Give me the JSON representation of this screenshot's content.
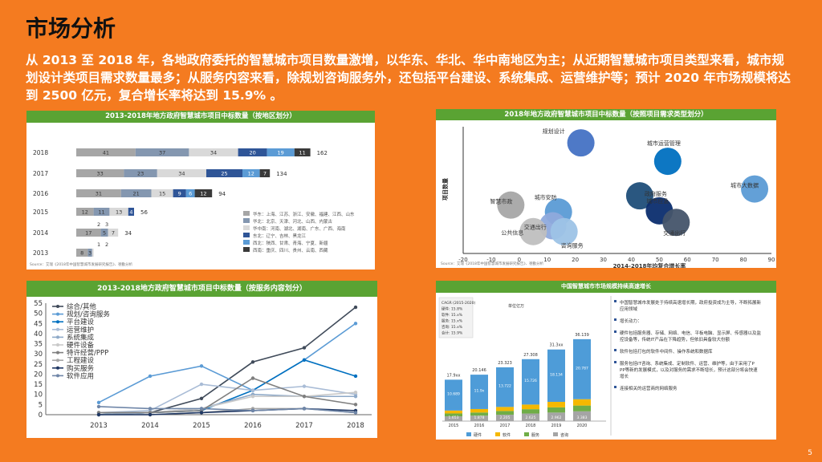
{
  "slide": {
    "title": "市场分析",
    "summary": "从 2013 至 2018 年，各地政府委托的智慧城市项目数量激增，以华东、华北、华中南地区为主；从近期智慧城市项目类型来看，城市规划设计类项目需求数量最多；从服务内容来看，除规划咨询服务外，还包括平台建设、系统集成、运营维护等；预计 2020 年市场规模将达到 2500 亿元，复合增长率将达到 15.9% 。",
    "page_number": "5"
  },
  "chart_data": [
    {
      "type": "bar",
      "title": "2013-2018年地方政府智慧城市项目中标数量（按地区划分）",
      "categories": [
        "2018",
        "2017",
        "2016",
        "2015",
        "2014",
        "2013"
      ],
      "series": [
        {
          "name": "华东：上海、江苏、浙江、安徽、福建、江西、山东",
          "color": "#a6a6a6",
          "values": [
            41,
            33,
            31,
            12,
            17,
            8
          ]
        },
        {
          "name": "华北：北京、天津、河北、山西、内蒙古",
          "color": "#8497b0",
          "values": [
            37,
            23,
            21,
            11,
            5,
            3
          ]
        },
        {
          "name": "华中南：河南、湖北、湖南、广东、广西、海南",
          "color": "#d9d9d9",
          "values": [
            34,
            34,
            15,
            13,
            7,
            1
          ]
        },
        {
          "name": "东北：辽宁、吉林、黑龙江",
          "color": "#2f5597",
          "values": [
            20,
            25,
            9,
            4,
            0,
            0
          ]
        },
        {
          "name": "西北：陕西、甘肃、青海、宁夏、新疆",
          "color": "#5b9bd5",
          "values": [
            19,
            12,
            6,
            0,
            0,
            0
          ]
        },
        {
          "name": "西南：重庆、四川、贵州、云南、西藏",
          "color": "#3a3a3a",
          "values": [
            11,
            7,
            12,
            0,
            0,
            0
          ]
        }
      ],
      "labels": [
        [
          "41",
          "37",
          "34",
          "20",
          "19",
          "11"
        ],
        [
          "33",
          "23",
          "34",
          "25",
          "12",
          "7"
        ],
        [
          "31",
          "21",
          "15",
          "9",
          "6",
          "12"
        ],
        [
          "12",
          "11",
          "13",
          "4",
          "",
          ""
        ],
        [
          "17",
          "5",
          "7",
          "",
          "",
          ""
        ],
        [
          "8",
          "3",
          "",
          "",
          "",
          ""
        ]
      ],
      "above_labels": [
        [
          "",
          ""
        ],
        [
          "",
          ""
        ],
        [
          "",
          ""
        ],
        [
          "",
          ""
        ],
        [
          "2",
          "3"
        ],
        [
          "1",
          "2"
        ]
      ],
      "totals": [
        "162",
        "134",
        "94",
        "56",
        "34",
        ""
      ],
      "xlim": [
        0,
        180
      ],
      "legend_position": "bottom-right",
      "source": "Source：艾瑞《2018年中国智慧城市发展研究报告》、德勤分析"
    },
    {
      "type": "scatter",
      "title": "2018年地方政府智慧城市项目中标数量（按照项目需求类型划分）",
      "xlabel": "2014-2018年均复合增长率",
      "ylabel": "项目数量",
      "xlim": [
        -20,
        90
      ],
      "xticks": [
        "-20",
        "-10",
        "0",
        "10",
        "20",
        "30",
        "40",
        "50",
        "60",
        "70",
        "80",
        "90"
      ],
      "points": [
        {
          "name": "规划设计",
          "x": 22,
          "y": 9.6,
          "color": "#4472c4",
          "r": 17
        },
        {
          "name": "城市运营管理",
          "x": 53,
          "y": 8.0,
          "color": "#0070c0",
          "r": 17
        },
        {
          "name": "城市大数据",
          "x": 84,
          "y": 5.6,
          "color": "#5b9bd5",
          "r": 17
        },
        {
          "name": "政府服务",
          "x": 43,
          "y": 5.0,
          "color": "#1f4e79",
          "r": 17
        },
        {
          "name": "城市应急",
          "x": 50,
          "y": 3.7,
          "color": "#0b2d6e",
          "r": 17
        },
        {
          "name": "交通出行",
          "x": 56,
          "y": 2.7,
          "color": "#44546a",
          "r": 17
        },
        {
          "name": "智慧市政",
          "x": -3,
          "y": 4.2,
          "color": "#a6a6a6",
          "r": 17
        },
        {
          "name": "城市安防",
          "x": 14,
          "y": 3.6,
          "color": "#5b9bd5",
          "r": 17
        },
        {
          "name": "交通出行",
          "x": 12,
          "y": 2.4,
          "color": "#8faadc",
          "r": 17
        },
        {
          "name": "公共信息",
          "x": 5,
          "y": 1.9,
          "color": "#bfbfbf",
          "r": 17
        },
        {
          "name": "咨询服务",
          "x": 16,
          "y": 1.9,
          "color": "#9dc3e6",
          "r": 17
        }
      ],
      "ylim": [
        0,
        11
      ],
      "source": "Source：艾瑞《2018年中国智慧城市发展研究报告》、德勤分析"
    },
    {
      "type": "line",
      "title": "2013-2018地方政府智慧城市项目中标数量（按服务内容划分）",
      "x": [
        "2013",
        "2014",
        "2015",
        "2016",
        "2017",
        "2018"
      ],
      "ylim": [
        0,
        55
      ],
      "yticks": [
        0,
        5,
        10,
        15,
        20,
        25,
        30,
        35,
        40,
        45,
        50,
        55
      ],
      "legend_position": "top-left",
      "series": [
        {
          "name": "综合/其他",
          "color": "#404b5a",
          "values": [
            0,
            1,
            8,
            26,
            33,
            53
          ]
        },
        {
          "name": "规划/咨询服务",
          "color": "#5b9bd5",
          "values": [
            6,
            19,
            24,
            12,
            27,
            45
          ]
        },
        {
          "name": "平台建设",
          "color": "#0070c0",
          "values": [
            0,
            1,
            2,
            12,
            27,
            19
          ]
        },
        {
          "name": "运营维护",
          "color": "#a9bcd6",
          "values": [
            1,
            2,
            15,
            12,
            14,
            10
          ]
        },
        {
          "name": "系统集成",
          "color": "#8ea9c8",
          "values": [
            0,
            1,
            3,
            10,
            9,
            9
          ]
        },
        {
          "name": "硬件设备",
          "color": "#c9c9c9",
          "values": [
            1,
            1,
            3,
            9,
            9,
            11
          ]
        },
        {
          "name": "特许经营/PPP",
          "color": "#7f7f7f",
          "values": [
            1,
            1,
            2,
            18,
            9,
            5
          ]
        },
        {
          "name": "工程建设",
          "color": "#a6a6a6",
          "values": [
            0,
            0,
            1,
            3,
            3,
            1
          ]
        },
        {
          "name": "购买服务",
          "color": "#203864",
          "values": [
            0,
            0,
            1,
            2,
            3,
            2
          ]
        },
        {
          "name": "软件应用",
          "color": "#6f86a8",
          "values": [
            4,
            3,
            3,
            2,
            3,
            1
          ]
        }
      ]
    },
    {
      "type": "bar",
      "title": "中国智慧城市市场规模持续高速增长",
      "subtitle": "复合增长率",
      "categories": [
        "2015",
        "2016",
        "2017",
        "2018",
        "2019",
        "2020"
      ],
      "series": [
        {
          "name": "硬件",
          "color": "#4e9cd8",
          "values": [
            10.689,
            11.9,
            13.722,
            15.726,
            18.134,
            20.787
          ]
        },
        {
          "name": "软件",
          "color": "#f5b800",
          "values": [
            1.0,
            1.2,
            1.4,
            1.6,
            1.9,
            2.2
          ]
        },
        {
          "name": "服务",
          "color": "#70ad47",
          "values": [
            1.0,
            1.1,
            1.3,
            1.5,
            1.8,
            2.0
          ]
        },
        {
          "name": "咨询",
          "color": "#a5a5a5",
          "values": [
            1.653,
            1.878,
            2.205,
            2.625,
            2.962,
            3.383
          ]
        }
      ],
      "totals": [
        "17.9xx",
        "20.146",
        "23.323",
        "27.308",
        "31.3xx",
        "36.139"
      ],
      "inner_labels": [
        [
          "10.689",
          "",
          "",
          "4.2xx",
          "1.653"
        ],
        [
          "11.9x",
          "",
          "",
          "4.782",
          "1.878"
        ],
        [
          "13.722",
          "",
          "",
          "5.551",
          "2.205"
        ],
        [
          "15.726",
          "",
          "",
          "6.156",
          "2.625"
        ],
        [
          "18.134",
          "",
          "",
          "7.120",
          "2.962"
        ],
        [
          "20.787",
          "2.598",
          "",
          "8.5xx",
          "3.383"
        ]
      ],
      "cagr_box": [
        "CAGR (2015-2020)",
        "硬件: 15.8%",
        "软件: 15.x%",
        "服务: 15.x%",
        "咨询: 15.x%",
        "合计: 15.9%"
      ],
      "annotation": "单位亿万",
      "source": "Source：IDC, 德勤分析",
      "bullets": [
        "中国智慧城市发展处于持续高速增长期，政府投资成为主导，不断拓展新应用领域",
        "增长动力：",
        "硬件包括服务器、存储、网络、电信、平板电脑、显示屏、传感器以及监控设备等，传统IT产品在下降趋势，但依旧具备较大份额",
        "软件包括打包的软件中间件、操作系统和数据库",
        "服务包括IT咨询、系统集成、定制软件、运营、维护等，由于采用了PPP等新的发展模式，以及对服务的需求不断增长，预计这部分将会快速增长",
        "连接相关的运营商的网络服务"
      ]
    }
  ]
}
